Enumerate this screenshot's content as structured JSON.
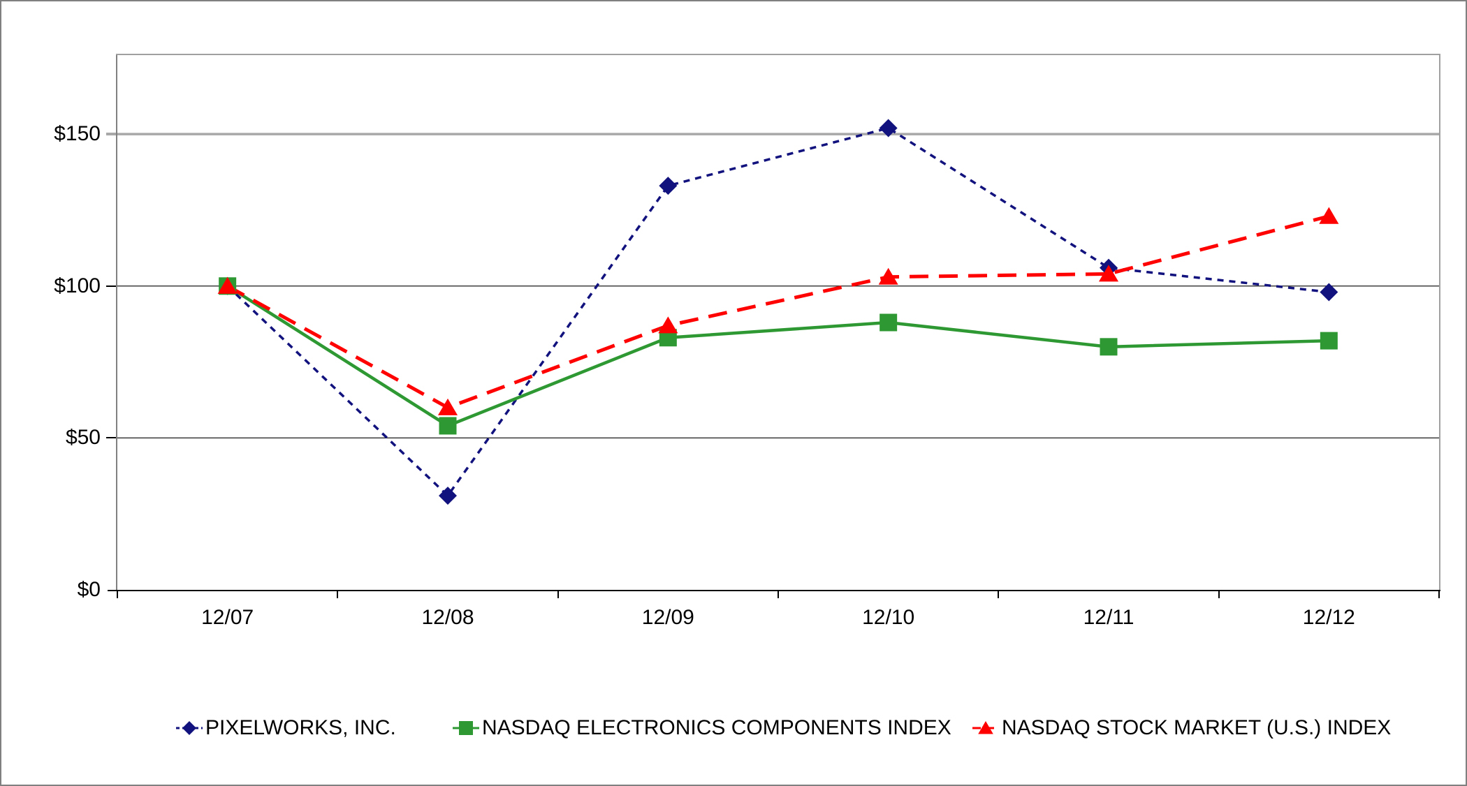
{
  "chart_data": {
    "type": "line",
    "title": "",
    "xlabel": "",
    "ylabel": "",
    "categories": [
      "12/07",
      "12/08",
      "12/09",
      "12/10",
      "12/11",
      "12/12"
    ],
    "series": [
      {
        "name": "PIXELWORKS, INC.",
        "values": [
          100,
          31,
          133,
          152,
          106,
          98
        ],
        "color": "#12127E",
        "marker": "diamond",
        "line_style": "dotted"
      },
      {
        "name": "NASDAQ ELECTRONICS COMPONENTS INDEX",
        "values": [
          100,
          54,
          83,
          88,
          80,
          82
        ],
        "color": "#2E9932",
        "marker": "square",
        "line_style": "solid"
      },
      {
        "name": "NASDAQ STOCK MARKET (U.S.) INDEX",
        "values": [
          100,
          60,
          87,
          103,
          104,
          123
        ],
        "color": "#FF0000",
        "marker": "triangle",
        "line_style": "dashed"
      }
    ],
    "ylim": [
      0,
      176
    ],
    "yticks": [
      {
        "value": 0,
        "label": "$0"
      },
      {
        "value": 50,
        "label": "$50"
      },
      {
        "value": 100,
        "label": "$100"
      },
      {
        "value": 150,
        "label": "$150"
      }
    ],
    "grid": true,
    "legend_position": "bottom"
  }
}
